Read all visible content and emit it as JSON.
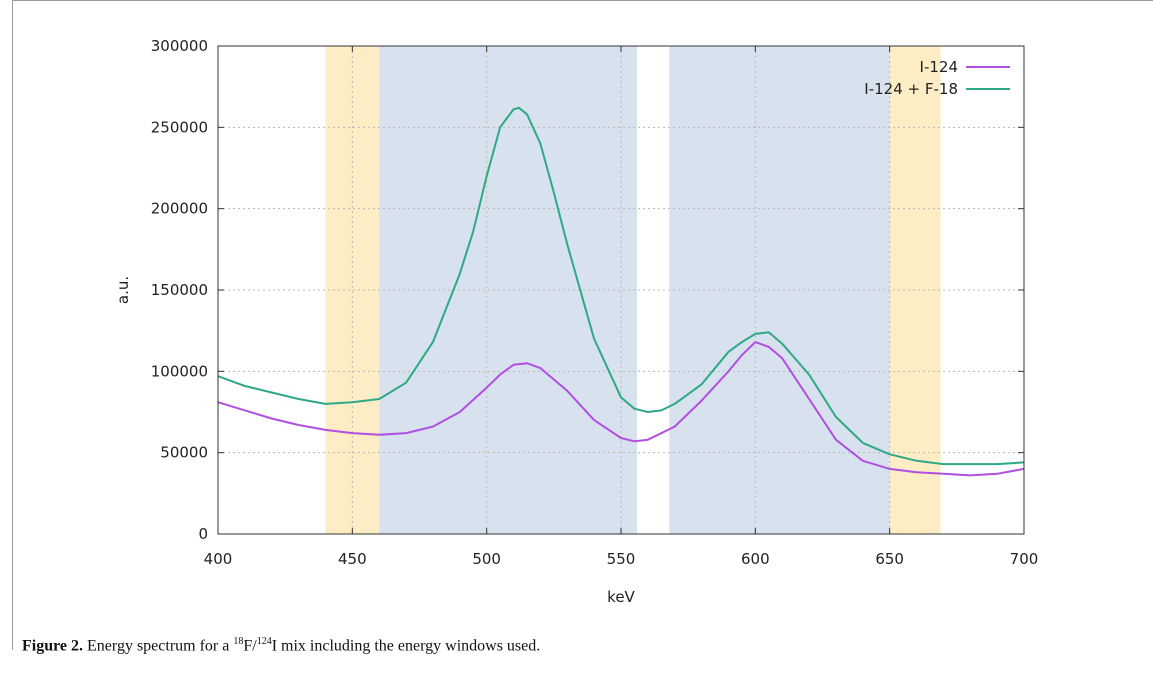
{
  "colors": {
    "window_signal": "#d8e2ef",
    "window_scatter": "#fdedc5",
    "series_i124": "#b04fe0",
    "series_i124_f18": "#2ea887",
    "grid": "#b8b8b8"
  },
  "chart_data": {
    "type": "line",
    "xlabel": "keV",
    "ylabel": "a.u.",
    "xlim": [
      400,
      700
    ],
    "ylim": [
      0,
      300000
    ],
    "x_ticks": [
      400,
      450,
      500,
      550,
      600,
      650,
      700
    ],
    "y_ticks": [
      0,
      50000,
      100000,
      150000,
      200000,
      250000,
      300000
    ],
    "x_tick_labels": [
      "400",
      "450",
      "500",
      "550",
      "600",
      "650",
      "700"
    ],
    "y_tick_labels": [
      "0",
      "50000",
      "100000",
      "150000",
      "200000",
      "250000",
      "300000"
    ],
    "grid": true,
    "legend_position": "top-right",
    "shaded_windows": [
      {
        "kind": "scatter",
        "from": 440,
        "to": 460
      },
      {
        "kind": "signal",
        "from": 460,
        "to": 556
      },
      {
        "kind": "signal",
        "from": 568,
        "to": 650
      },
      {
        "kind": "scatter",
        "from": 650,
        "to": 669
      }
    ],
    "series": [
      {
        "name": "I-124",
        "color": "#b04fe0",
        "x": [
          400,
          410,
          420,
          430,
          440,
          450,
          460,
          470,
          480,
          490,
          500,
          505,
          510,
          515,
          520,
          530,
          540,
          550,
          555,
          560,
          570,
          580,
          590,
          595,
          600,
          605,
          610,
          620,
          630,
          640,
          650,
          660,
          670,
          680,
          690,
          700
        ],
        "y": [
          81000,
          76000,
          71000,
          67000,
          64000,
          62000,
          61000,
          62000,
          66000,
          75000,
          90000,
          98000,
          104000,
          105000,
          102000,
          88000,
          70000,
          59000,
          57000,
          58000,
          66000,
          82000,
          100000,
          110000,
          118000,
          115000,
          108000,
          83000,
          58000,
          45000,
          40000,
          38000,
          37000,
          36000,
          37000,
          40000
        ]
      },
      {
        "name": "I-124 + F-18",
        "color": "#2ea887",
        "x": [
          400,
          410,
          420,
          430,
          440,
          450,
          460,
          470,
          480,
          490,
          495,
          500,
          505,
          510,
          512,
          515,
          520,
          525,
          530,
          540,
          550,
          555,
          560,
          565,
          570,
          580,
          590,
          595,
          600,
          605,
          610,
          620,
          630,
          640,
          650,
          660,
          670,
          680,
          690,
          700
        ],
        "y": [
          97000,
          91000,
          87000,
          83000,
          80000,
          81000,
          83000,
          93000,
          118000,
          160000,
          186000,
          220000,
          250000,
          261000,
          262000,
          258000,
          240000,
          210000,
          178000,
          120000,
          84000,
          77000,
          75000,
          76000,
          80000,
          92000,
          112000,
          118000,
          123000,
          124000,
          117000,
          98000,
          72000,
          56000,
          49000,
          45000,
          43000,
          43000,
          43000,
          44000
        ]
      }
    ]
  },
  "caption": {
    "label": "Figure 2.",
    "text_before": " Energy spectrum for a ",
    "sup_f": "18",
    "f": "F/",
    "sup_i": "124",
    "text_after": "I mix including the energy windows used."
  }
}
